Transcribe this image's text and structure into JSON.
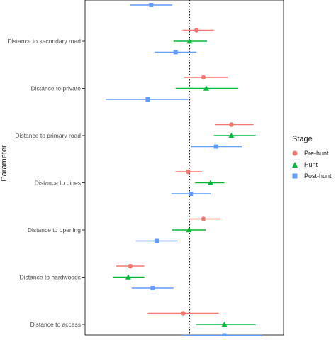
{
  "chart_data": {
    "type": "scatter",
    "ylabel": "Parameter",
    "xlabel": "",
    "reference_line_x": 0,
    "xlim": [
      -1.5,
      1.35
    ],
    "categories": [
      "Distance to secondary road",
      "Distance to private",
      "Distance to primary road",
      "Distance to pines",
      "Distance to opening",
      "Distance to hardwoods",
      "Distance to access"
    ],
    "series": [
      {
        "name": "Pre-hunt",
        "color": "#F8766D",
        "marker": "circle",
        "points": [
          {
            "category": "Distance to secondary road",
            "estimate": 0.1,
            "low": -0.1,
            "high": 0.35
          },
          {
            "category": "Distance to private",
            "estimate": 0.2,
            "low": -0.08,
            "high": 0.55
          },
          {
            "category": "Distance to primary road",
            "estimate": 0.6,
            "low": 0.37,
            "high": 0.92
          },
          {
            "category": "Distance to pines",
            "estimate": -0.02,
            "low": -0.2,
            "high": 0.18
          },
          {
            "category": "Distance to opening",
            "estimate": 0.2,
            "low": 0.0,
            "high": 0.45
          },
          {
            "category": "Distance to hardwoods",
            "estimate": -0.85,
            "low": -1.05,
            "high": -0.65
          },
          {
            "category": "Distance to access",
            "estimate": -0.09,
            "low": -0.6,
            "high": 0.42
          }
        ]
      },
      {
        "name": "Hunt",
        "color": "#00BA38",
        "marker": "triangle",
        "points": [
          {
            "category": "Distance to secondary road",
            "estimate": 0.0,
            "low": -0.23,
            "high": 0.25
          },
          {
            "category": "Distance to private",
            "estimate": 0.24,
            "low": -0.2,
            "high": 0.7
          },
          {
            "category": "Distance to primary road",
            "estimate": 0.6,
            "low": 0.35,
            "high": 0.95
          },
          {
            "category": "Distance to pines",
            "estimate": 0.3,
            "low": 0.08,
            "high": 0.5
          },
          {
            "category": "Distance to opening",
            "estimate": -0.01,
            "low": -0.25,
            "high": 0.23
          },
          {
            "category": "Distance to hardwoods",
            "estimate": -0.88,
            "low": -1.1,
            "high": -0.65
          },
          {
            "category": "Distance to access",
            "estimate": 0.5,
            "low": 0.1,
            "high": 0.95
          }
        ]
      },
      {
        "name": "Post-hunt",
        "color": "#619CFF",
        "marker": "square",
        "points": [
          {
            "category": "Distance to secondary road",
            "estimate": -0.2,
            "low": -0.5,
            "high": 0.1
          },
          {
            "category": "Distance to private",
            "estimate": -0.6,
            "low": -1.2,
            "high": -0.02
          },
          {
            "category": "Distance to primary road",
            "estimate": 0.38,
            "low": 0.02,
            "high": 0.75
          },
          {
            "category": "Distance to pines",
            "estimate": 0.02,
            "low": -0.26,
            "high": 0.3
          },
          {
            "category": "Distance to opening",
            "estimate": -0.47,
            "low": -0.77,
            "high": -0.17
          },
          {
            "category": "Distance to hardwoods",
            "estimate": -0.53,
            "low": -0.83,
            "high": -0.23
          },
          {
            "category": "Distance to access",
            "estimate": 0.5,
            "low": -0.1,
            "high": 1.05
          }
        ]
      }
    ],
    "extra_row_above": {
      "series": "Post-hunt",
      "estimate": -0.55,
      "low": -0.85,
      "high": -0.25
    },
    "legend": {
      "title": "Stage",
      "position": "right",
      "entries": [
        "Pre-hunt",
        "Hunt",
        "Post-hunt"
      ]
    },
    "grid": false
  }
}
